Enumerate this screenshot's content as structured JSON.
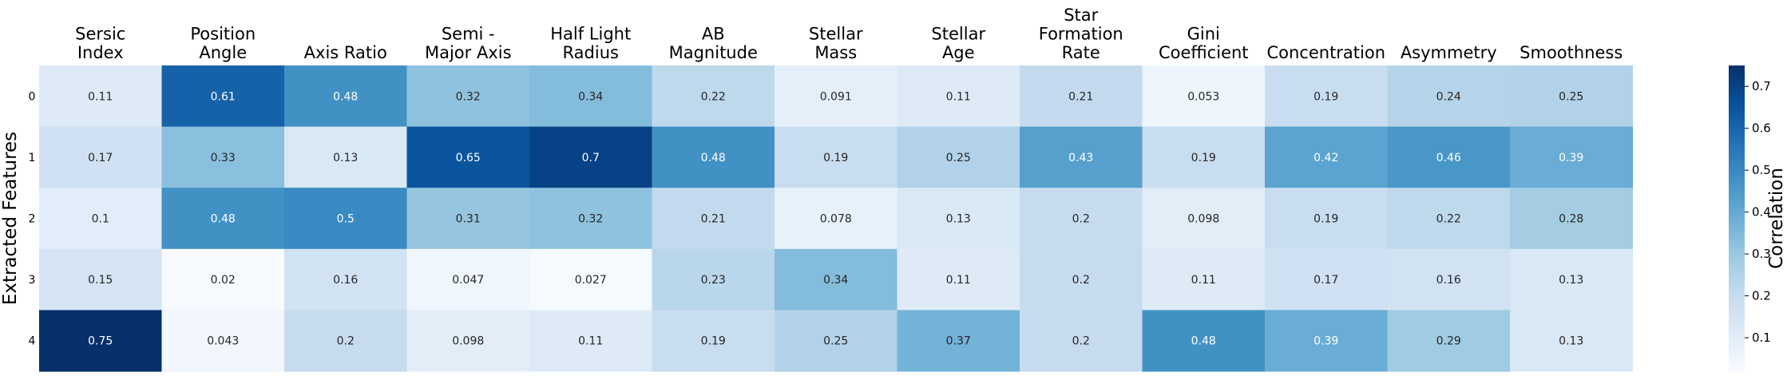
{
  "chart_data": {
    "type": "heatmap",
    "title": "",
    "xlabel": "",
    "ylabel": "Extracted Features",
    "columns": [
      [
        "Sersic",
        "Index"
      ],
      [
        "Position",
        "Angle"
      ],
      [
        "Axis Ratio"
      ],
      [
        "Semi -",
        "Major Axis"
      ],
      [
        "Half Light",
        "Radius"
      ],
      [
        "AB",
        "Magnitude"
      ],
      [
        "Stellar",
        "Mass"
      ],
      [
        "Stellar",
        "Age"
      ],
      [
        "Star",
        "Formation",
        "Rate"
      ],
      [
        "Gini",
        "Coefficient"
      ],
      [
        "Concentration"
      ],
      [
        "Asymmetry"
      ],
      [
        "Smoothness"
      ]
    ],
    "rows": [
      "0",
      "1",
      "2",
      "3",
      "4"
    ],
    "cell_labels": [
      [
        "0.11",
        "0.61",
        "0.48",
        "0.32",
        "0.34",
        "0.22",
        "0.091",
        "0.11",
        "0.21",
        "0.053",
        "0.19",
        "0.24",
        "0.25"
      ],
      [
        "0.17",
        "0.33",
        "0.13",
        "0.65",
        "0.7",
        "0.48",
        "0.19",
        "0.25",
        "0.43",
        "0.19",
        "0.42",
        "0.46",
        "0.39"
      ],
      [
        "0.1",
        "0.48",
        "0.5",
        "0.31",
        "0.32",
        "0.21",
        "0.078",
        "0.13",
        "0.2",
        "0.098",
        "0.19",
        "0.22",
        "0.28"
      ],
      [
        "0.15",
        "0.02",
        "0.16",
        "0.047",
        "0.027",
        "0.23",
        "0.34",
        "0.11",
        "0.2",
        "0.11",
        "0.17",
        "0.16",
        "0.13"
      ],
      [
        "0.75",
        "0.043",
        "0.2",
        "0.098",
        "0.11",
        "0.19",
        "0.25",
        "0.37",
        "0.2",
        "0.48",
        "0.39",
        "0.29",
        "0.13"
      ]
    ],
    "colorbar": {
      "label": "Correlation",
      "range": [
        0.02,
        0.75
      ],
      "ticks": [
        "0.1",
        "0.2",
        "0.3",
        "0.4",
        "0.5",
        "0.6",
        "0.7"
      ],
      "colormap": "Blues"
    }
  }
}
